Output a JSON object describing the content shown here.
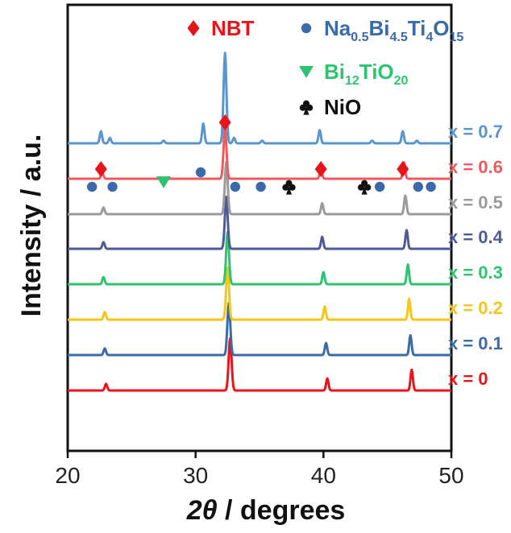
{
  "chart_data": {
    "type": "line",
    "xlabel_parts": {
      "symbol": "2θ",
      "rest": " / degrees"
    },
    "ylabel": "Intensity / a.u.",
    "xlim": [
      20,
      50
    ],
    "xticks": [
      20,
      30,
      40,
      50
    ],
    "y_ticks_shown": false,
    "series": [
      {
        "label": "x = 0",
        "color": "#e8141c",
        "peaks": [
          [
            23.0,
            0.12
          ],
          [
            32.7,
            0.95
          ],
          [
            40.3,
            0.22
          ],
          [
            46.9,
            0.38
          ]
        ]
      },
      {
        "label": "x = 0.1",
        "color": "#3a6aa8",
        "peaks": [
          [
            22.9,
            0.12
          ],
          [
            32.6,
            0.95
          ],
          [
            40.2,
            0.22
          ],
          [
            46.8,
            0.36
          ]
        ]
      },
      {
        "label": "x = 0.2",
        "color": "#f5c518",
        "peaks": [
          [
            22.9,
            0.14
          ],
          [
            32.5,
            0.95
          ],
          [
            40.1,
            0.24
          ],
          [
            46.7,
            0.38
          ]
        ]
      },
      {
        "label": "x = 0.3",
        "color": "#2ec46f",
        "peaks": [
          [
            22.8,
            0.13
          ],
          [
            32.5,
            0.95
          ],
          [
            40.0,
            0.22
          ],
          [
            46.6,
            0.36
          ]
        ]
      },
      {
        "label": "x = 0.4",
        "color": "#4d5a98",
        "peaks": [
          [
            22.8,
            0.12
          ],
          [
            32.4,
            0.95
          ],
          [
            39.9,
            0.22
          ],
          [
            46.5,
            0.34
          ]
        ]
      },
      {
        "label": "x = 0.5",
        "color": "#9a9a9a",
        "peaks": [
          [
            22.8,
            0.12
          ],
          [
            32.4,
            0.95
          ],
          [
            39.9,
            0.2
          ],
          [
            46.4,
            0.34
          ]
        ]
      },
      {
        "label": "x = 0.6",
        "color": "#ee5a5e",
        "peaks": [
          [
            22.7,
            0.12
          ],
          [
            32.3,
            0.95
          ],
          [
            39.8,
            0.2
          ],
          [
            46.3,
            0.3
          ]
        ]
      },
      {
        "label": "x = 0.7",
        "color": "#5b95d0",
        "peaks": [
          [
            22.6,
            0.22
          ],
          [
            23.3,
            0.1
          ],
          [
            27.5,
            0.05
          ],
          [
            30.6,
            0.36
          ],
          [
            32.3,
            1.65
          ],
          [
            33.0,
            0.1
          ],
          [
            35.2,
            0.05
          ],
          [
            39.7,
            0.24
          ],
          [
            43.8,
            0.05
          ],
          [
            46.2,
            0.22
          ],
          [
            47.3,
            0.05
          ]
        ]
      }
    ],
    "legend": [
      {
        "symbol": "diamond",
        "color": "#e8141c",
        "text": "NBT"
      },
      {
        "symbol": "circle",
        "color": "#3a6aa8",
        "parts": [
          "Na",
          "0.5",
          "Bi",
          "4.5",
          "Ti",
          "4",
          "O",
          "15"
        ]
      },
      {
        "symbol": "triangle",
        "color": "#2ec46f",
        "parts": [
          "Bi",
          "12",
          "TiO",
          "20"
        ]
      },
      {
        "symbol": "club",
        "color": "#111111",
        "text": "NiO"
      }
    ],
    "markers": [
      {
        "symbol": "diamond",
        "color": "#e8141c",
        "x": 22.6
      },
      {
        "symbol": "circle",
        "color": "#3a6aa8",
        "x": 21.9
      },
      {
        "symbol": "circle",
        "color": "#3a6aa8",
        "x": 23.5
      },
      {
        "symbol": "triangle",
        "color": "#2ec46f",
        "x": 27.5
      },
      {
        "symbol": "circle",
        "color": "#3a6aa8",
        "x": 30.4
      },
      {
        "symbol": "diamond",
        "color": "#e8141c",
        "x": 32.3
      },
      {
        "symbol": "circle",
        "color": "#3a6aa8",
        "x": 33.1
      },
      {
        "symbol": "circle",
        "color": "#3a6aa8",
        "x": 35.1
      },
      {
        "symbol": "club",
        "color": "#111111",
        "x": 37.3
      },
      {
        "symbol": "diamond",
        "color": "#e8141c",
        "x": 39.8
      },
      {
        "symbol": "club",
        "color": "#111111",
        "x": 43.2
      },
      {
        "symbol": "circle",
        "color": "#3a6aa8",
        "x": 44.4
      },
      {
        "symbol": "diamond",
        "color": "#e8141c",
        "x": 46.2
      },
      {
        "symbol": "circle",
        "color": "#3a6aa8",
        "x": 47.4
      },
      {
        "symbol": "circle",
        "color": "#3a6aa8",
        "x": 48.4
      }
    ]
  }
}
